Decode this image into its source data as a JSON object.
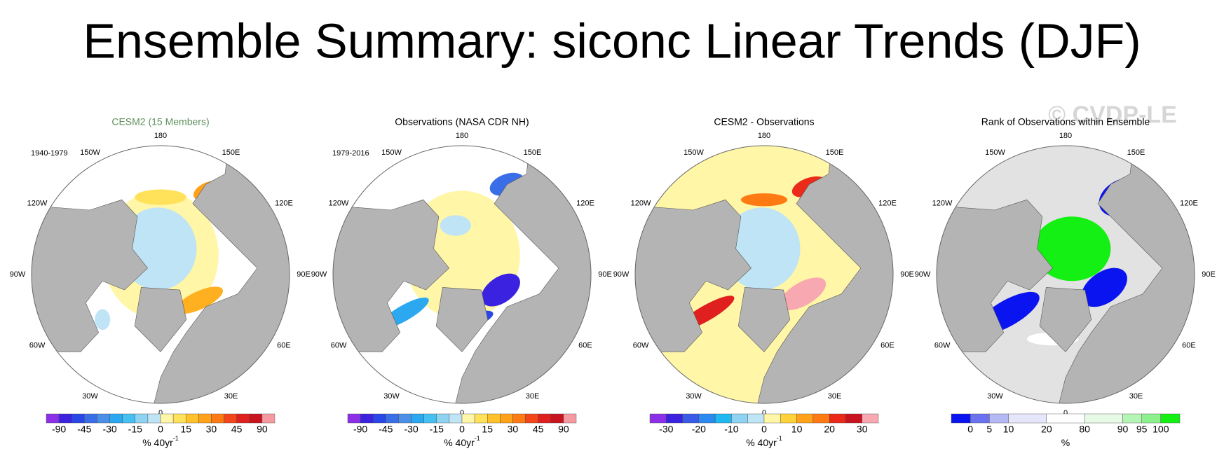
{
  "title": "Ensemble Summary: siconc Linear Trends (DJF)",
  "watermark": "© CVDP-LE",
  "longitude_labels": [
    "180",
    "150E",
    "120E",
    "90E",
    "60E",
    "30E",
    "0",
    "30W",
    "60W",
    "90W",
    "120W",
    "150W"
  ],
  "panels": [
    {
      "title": "CESM2 (15 Members)",
      "period": "1940-1979",
      "colorbar": {
        "colors": [
          "#8c30e8",
          "#3a22e0",
          "#2946e6",
          "#3a6ee8",
          "#4a8ee8",
          "#2ba8f0",
          "#46c0f0",
          "#8fd3f2",
          "#bfe4f5",
          "#fff6a8",
          "#ffe15a",
          "#ffc22a",
          "#ffa21a",
          "#ff7a12",
          "#f3461a",
          "#e01f1f",
          "#c8141e",
          "#f59aa0"
        ],
        "ticks": [
          -90,
          -45,
          -30,
          -15,
          0,
          15,
          30,
          45,
          90
        ],
        "unit": "% 40yr",
        "unit_superscript": "-1"
      }
    },
    {
      "title": "Observations (NASA CDR NH)",
      "period": "1979-2016",
      "colorbar": {
        "colors": [
          "#8c30e8",
          "#3a22e0",
          "#2946e6",
          "#3a6ee8",
          "#4a8ee8",
          "#2ba8f0",
          "#46c0f0",
          "#8fd3f2",
          "#bfe4f5",
          "#fff6a8",
          "#ffe15a",
          "#ffc22a",
          "#ffa21a",
          "#ff7a12",
          "#f3461a",
          "#e01f1f",
          "#c8141e",
          "#f59aa0"
        ],
        "ticks": [
          -90,
          -45,
          -30,
          -15,
          0,
          15,
          30,
          45,
          90
        ],
        "unit": "% 40yr",
        "unit_superscript": "-1"
      }
    },
    {
      "title": "CESM2 - Observations",
      "colorbar": {
        "colors": [
          "#8c30e8",
          "#3a22e0",
          "#3a5ae8",
          "#2a8af0",
          "#20b8f0",
          "#8fd3f2",
          "#bfe4f5",
          "#fff6a8",
          "#ffd23a",
          "#ffa21a",
          "#ff7a12",
          "#ec2a1a",
          "#c8141e",
          "#f8a8b0"
        ],
        "ticks": [
          -30,
          -20,
          -10,
          0,
          10,
          20,
          30
        ],
        "unit": "% 40yr",
        "unit_superscript": "-1"
      }
    },
    {
      "title": "Rank of Observations within Ensemble",
      "colorbar": {
        "colors": [
          "#0a14f0",
          "#6a72f0",
          "#b4b8f4",
          "#e6e6fa",
          "#ffffff",
          "#e6fae6",
          "#b4f4b4",
          "#8cf08c",
          "#14f014"
        ],
        "ticks": [
          0,
          5,
          10,
          20,
          80,
          90,
          95,
          100
        ],
        "unit": "%"
      }
    }
  ]
}
